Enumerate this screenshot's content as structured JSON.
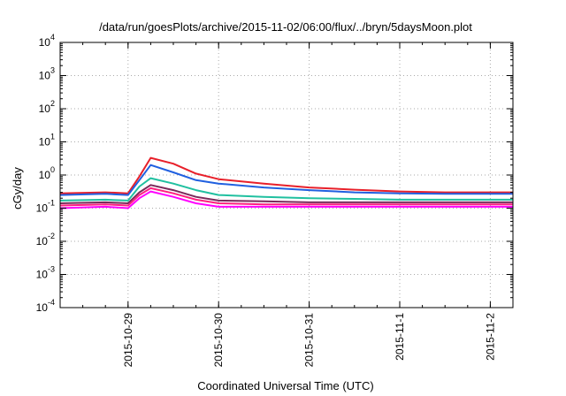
{
  "chart_data": {
    "type": "line",
    "title": "/data/run/goesPlots/archive/2015-11-02/06:00/flux/../bryn/5daysMoon.plot",
    "xlabel": "Coordinated Universal Time (UTC)",
    "ylabel": "cGy/day",
    "yscale": "log",
    "ylim": [
      0.0001,
      10000
    ],
    "xlim": [
      "2015-10-28T06:00",
      "2015-11-02T06:00"
    ],
    "grid": true,
    "legend": "none",
    "y_ticks": [
      {
        "value": 0.0001,
        "base": "10",
        "exp": "-4"
      },
      {
        "value": 0.001,
        "base": "10",
        "exp": "-3"
      },
      {
        "value": 0.01,
        "base": "10",
        "exp": "-2"
      },
      {
        "value": 0.1,
        "base": "10",
        "exp": "-1"
      },
      {
        "value": 1,
        "base": "10",
        "exp": "0"
      },
      {
        "value": 10,
        "base": "10",
        "exp": "1"
      },
      {
        "value": 100,
        "base": "10",
        "exp": "2"
      },
      {
        "value": 1000,
        "base": "10",
        "exp": "3"
      },
      {
        "value": 10000,
        "base": "10",
        "exp": "4"
      }
    ],
    "x_ticks": [
      {
        "value": "2015-10-29T00:00",
        "label": "2015-10-29"
      },
      {
        "value": "2015-10-30T00:00",
        "label": "2015-10-30"
      },
      {
        "value": "2015-10-31T00:00",
        "label": "2015-10-31"
      },
      {
        "value": "2015-11-01T00:00",
        "label": "2015-11-1"
      },
      {
        "value": "2015-11-02T00:00",
        "label": "2015-11-2"
      }
    ],
    "series": [
      {
        "color": "#e8202a",
        "x": [
          "2015-10-28T06:00",
          "2015-10-28T18:00",
          "2015-10-29T00:00",
          "2015-10-29T03:00",
          "2015-10-29T06:00",
          "2015-10-29T12:00",
          "2015-10-29T18:00",
          "2015-10-30T00:00",
          "2015-10-30T12:00",
          "2015-10-31T00:00",
          "2015-10-31T12:00",
          "2015-11-01T00:00",
          "2015-11-01T12:00",
          "2015-11-02T00:00",
          "2015-11-02T06:00"
        ],
        "y": [
          0.28,
          0.3,
          0.28,
          0.9,
          3.3,
          2.2,
          1.1,
          0.75,
          0.55,
          0.42,
          0.36,
          0.32,
          0.3,
          0.3,
          0.3
        ]
      },
      {
        "color": "#2060e0",
        "x": [
          "2015-10-28T06:00",
          "2015-10-28T18:00",
          "2015-10-29T00:00",
          "2015-10-29T03:00",
          "2015-10-29T06:00",
          "2015-10-29T12:00",
          "2015-10-29T18:00",
          "2015-10-30T00:00",
          "2015-10-30T12:00",
          "2015-10-31T00:00",
          "2015-10-31T12:00",
          "2015-11-01T00:00",
          "2015-11-01T12:00",
          "2015-11-02T00:00",
          "2015-11-02T06:00"
        ],
        "y": [
          0.25,
          0.27,
          0.25,
          0.7,
          2.0,
          1.2,
          0.7,
          0.55,
          0.42,
          0.35,
          0.3,
          0.28,
          0.27,
          0.27,
          0.27
        ]
      },
      {
        "color": "#20c0a0",
        "x": [
          "2015-10-28T06:00",
          "2015-10-28T18:00",
          "2015-10-29T00:00",
          "2015-10-29T03:00",
          "2015-10-29T06:00",
          "2015-10-29T12:00",
          "2015-10-29T18:00",
          "2015-10-30T00:00",
          "2015-10-30T12:00",
          "2015-10-31T00:00",
          "2015-10-31T12:00",
          "2015-11-01T00:00",
          "2015-11-01T12:00",
          "2015-11-02T00:00",
          "2015-11-02T06:00"
        ],
        "y": [
          0.17,
          0.18,
          0.17,
          0.45,
          0.8,
          0.55,
          0.35,
          0.25,
          0.22,
          0.2,
          0.19,
          0.18,
          0.18,
          0.18,
          0.18
        ]
      },
      {
        "color": "#7a2a5a",
        "x": [
          "2015-10-28T06:00",
          "2015-10-28T18:00",
          "2015-10-29T00:00",
          "2015-10-29T03:00",
          "2015-10-29T06:00",
          "2015-10-29T12:00",
          "2015-10-29T18:00",
          "2015-10-30T00:00",
          "2015-10-30T12:00",
          "2015-10-31T00:00",
          "2015-10-31T12:00",
          "2015-11-01T00:00",
          "2015-11-01T12:00",
          "2015-11-02T00:00",
          "2015-11-02T06:00"
        ],
        "y": [
          0.14,
          0.15,
          0.14,
          0.3,
          0.5,
          0.35,
          0.22,
          0.17,
          0.16,
          0.15,
          0.15,
          0.15,
          0.15,
          0.15,
          0.15
        ]
      },
      {
        "color": "#ff2080",
        "x": [
          "2015-10-28T06:00",
          "2015-10-28T18:00",
          "2015-10-29T00:00",
          "2015-10-29T03:00",
          "2015-10-29T06:00",
          "2015-10-29T12:00",
          "2015-10-29T18:00",
          "2015-10-30T00:00",
          "2015-10-30T12:00",
          "2015-10-31T00:00",
          "2015-10-31T12:00",
          "2015-11-01T00:00",
          "2015-11-01T12:00",
          "2015-11-02T00:00",
          "2015-11-02T06:00"
        ],
        "y": [
          0.12,
          0.13,
          0.12,
          0.25,
          0.4,
          0.28,
          0.18,
          0.14,
          0.13,
          0.13,
          0.13,
          0.13,
          0.13,
          0.13,
          0.13
        ]
      },
      {
        "color": "#ff00ff",
        "x": [
          "2015-10-28T06:00",
          "2015-10-28T18:00",
          "2015-10-29T00:00",
          "2015-10-29T03:00",
          "2015-10-29T06:00",
          "2015-10-29T12:00",
          "2015-10-29T18:00",
          "2015-10-30T00:00",
          "2015-10-30T12:00",
          "2015-10-31T00:00",
          "2015-10-31T12:00",
          "2015-11-01T00:00",
          "2015-11-01T12:00",
          "2015-11-02T00:00",
          "2015-11-02T06:00"
        ],
        "y": [
          0.1,
          0.11,
          0.1,
          0.2,
          0.32,
          0.22,
          0.14,
          0.11,
          0.11,
          0.11,
          0.11,
          0.11,
          0.11,
          0.11,
          0.11
        ]
      }
    ]
  }
}
